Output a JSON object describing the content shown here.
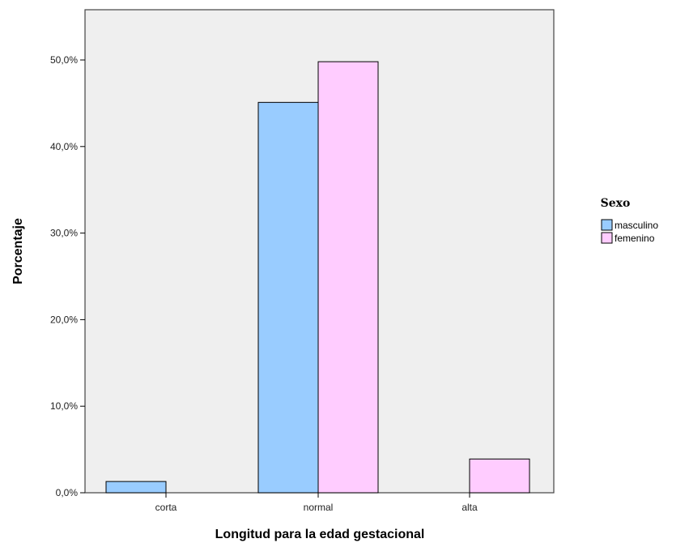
{
  "colors": {
    "plot_background": "#efefef",
    "bar_stroke": "#000000",
    "masculino": "#99ccff",
    "femenino": "#ffccff"
  },
  "chart_data": {
    "type": "bar",
    "title": "",
    "xlabel": "Longitud para la edad gestacional",
    "ylabel": "Porcentaje",
    "categories": [
      "corta",
      "normal",
      "alta"
    ],
    "series": [
      {
        "name": "masculino",
        "values": [
          1.3,
          45.1,
          0
        ]
      },
      {
        "name": "femenino",
        "values": [
          0,
          49.8,
          3.9
        ]
      }
    ],
    "ylim": [
      0,
      50
    ],
    "yticks": [
      0,
      10,
      20,
      30,
      40,
      50
    ],
    "ytick_labels": [
      "0,0%",
      "10,0%",
      "20,0%",
      "30,0%",
      "40,0%",
      "50,0%"
    ],
    "grid": false,
    "legend": {
      "title": "Sexo",
      "placement": "right"
    }
  }
}
